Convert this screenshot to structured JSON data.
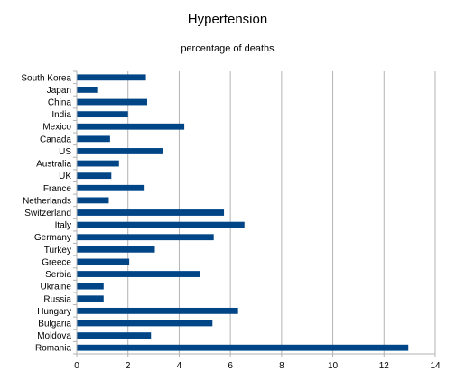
{
  "chart_data": {
    "type": "bar",
    "orientation": "horizontal",
    "title": "Hypertension",
    "subtitle": "percentage of deaths",
    "xlabel": "",
    "ylabel": "",
    "categories": [
      "South Korea",
      "Japan",
      "China",
      "India",
      "Mexico",
      "Canada",
      "US",
      "Australia",
      "UK",
      "France",
      "Netherlands",
      "Switzerland",
      "Italy",
      "Germany",
      "Turkey",
      "Greece",
      "Serbia",
      "Ukraine",
      "Russia",
      "Hungary",
      "Bulgaria",
      "Moldova",
      "Romania"
    ],
    "values": [
      2.7,
      0.8,
      2.75,
      2.0,
      4.2,
      1.3,
      3.35,
      1.65,
      1.35,
      2.65,
      1.25,
      5.75,
      6.55,
      5.35,
      3.05,
      2.05,
      4.8,
      1.05,
      1.05,
      6.3,
      5.3,
      2.9,
      12.95
    ],
    "xlim": [
      0,
      14
    ],
    "xticks": [
      0,
      2,
      4,
      6,
      8,
      10,
      12,
      14
    ],
    "grid": "vertical",
    "legend": "none",
    "bar_color": "#004586",
    "grid_color": "#b3b3b3",
    "axis_color": "#b3b3b3"
  }
}
